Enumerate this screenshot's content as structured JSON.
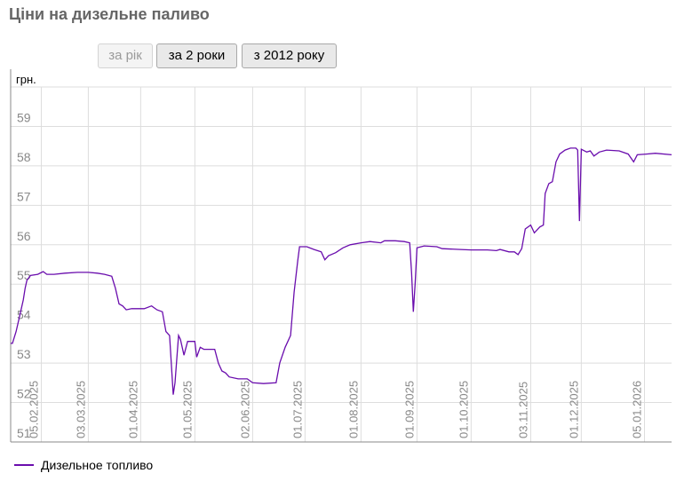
{
  "page": {
    "title": "Ціни на дизельне паливо"
  },
  "controls": {
    "buttons": [
      {
        "label": "за рік",
        "disabled": true
      },
      {
        "label": "за 2 роки",
        "disabled": false
      },
      {
        "label": "з 2012 року",
        "disabled": false
      }
    ]
  },
  "colors": {
    "series": "#6a0dad",
    "grid": "#dddddd",
    "axis": "#888888"
  },
  "chart_data": {
    "type": "line",
    "title": "Ціни на дизельне паливо",
    "ylabel": "грн.",
    "xlabel": "",
    "ylim": [
      51,
      60
    ],
    "yticks": [
      51,
      52,
      53,
      54,
      55,
      56,
      57,
      58,
      59
    ],
    "xticks": [
      "05.02.2025",
      "03.03.2025",
      "01.04.2025",
      "01.05.2025",
      "02.06.2025",
      "01.07.2025",
      "01.08.2025",
      "01.09.2025",
      "01.10.2025",
      "03.11.2025",
      "01.12.2025",
      "05.01.2026"
    ],
    "xlim": [
      "2025-01-19",
      "2026-01-20"
    ],
    "grid": true,
    "legend_position": "bottom-left",
    "series": [
      {
        "name": "Дизельное топливо",
        "color": "#6a0dad",
        "points": [
          [
            "2025-01-19",
            53.5
          ],
          [
            "2025-01-20",
            53.5
          ],
          [
            "2025-01-22",
            53.8
          ],
          [
            "2025-01-24",
            54.2
          ],
          [
            "2025-01-26",
            54.6
          ],
          [
            "2025-01-27",
            54.9
          ],
          [
            "2025-01-28",
            55.1
          ],
          [
            "2025-01-30",
            55.22
          ],
          [
            "2025-02-03",
            55.25
          ],
          [
            "2025-02-06",
            55.32
          ],
          [
            "2025-02-08",
            55.25
          ],
          [
            "2025-02-12",
            55.25
          ],
          [
            "2025-02-18",
            55.28
          ],
          [
            "2025-02-25",
            55.3
          ],
          [
            "2025-03-03",
            55.3
          ],
          [
            "2025-03-08",
            55.28
          ],
          [
            "2025-03-12",
            55.25
          ],
          [
            "2025-03-16",
            55.2
          ],
          [
            "2025-03-18",
            54.9
          ],
          [
            "2025-03-20",
            54.5
          ],
          [
            "2025-03-22",
            54.45
          ],
          [
            "2025-03-24",
            54.35
          ],
          [
            "2025-03-27",
            54.38
          ],
          [
            "2025-04-03",
            54.38
          ],
          [
            "2025-04-07",
            54.45
          ],
          [
            "2025-04-10",
            54.35
          ],
          [
            "2025-04-13",
            54.3
          ],
          [
            "2025-04-15",
            53.8
          ],
          [
            "2025-04-17",
            53.7
          ],
          [
            "2025-04-19",
            52.2
          ],
          [
            "2025-04-20",
            52.5
          ],
          [
            "2025-04-22",
            53.7
          ],
          [
            "2025-04-23",
            53.6
          ],
          [
            "2025-04-25",
            53.2
          ],
          [
            "2025-04-27",
            53.55
          ],
          [
            "2025-05-01",
            53.55
          ],
          [
            "2025-05-02",
            53.15
          ],
          [
            "2025-05-04",
            53.4
          ],
          [
            "2025-05-06",
            53.35
          ],
          [
            "2025-05-12",
            53.35
          ],
          [
            "2025-05-14",
            53.0
          ],
          [
            "2025-05-16",
            52.8
          ],
          [
            "2025-05-18",
            52.75
          ],
          [
            "2025-05-20",
            52.65
          ],
          [
            "2025-05-25",
            52.6
          ],
          [
            "2025-05-30",
            52.6
          ],
          [
            "2025-06-02",
            52.5
          ],
          [
            "2025-06-08",
            52.48
          ],
          [
            "2025-06-15",
            52.5
          ],
          [
            "2025-06-17",
            53.0
          ],
          [
            "2025-06-20",
            53.4
          ],
          [
            "2025-06-23",
            53.7
          ],
          [
            "2025-06-25",
            54.8
          ],
          [
            "2025-06-27",
            55.6
          ],
          [
            "2025-06-28",
            55.95
          ],
          [
            "2025-07-02",
            55.95
          ],
          [
            "2025-07-06",
            55.88
          ],
          [
            "2025-07-10",
            55.82
          ],
          [
            "2025-07-12",
            55.62
          ],
          [
            "2025-07-14",
            55.72
          ],
          [
            "2025-07-18",
            55.8
          ],
          [
            "2025-07-22",
            55.92
          ],
          [
            "2025-07-26",
            56.0
          ],
          [
            "2025-08-01",
            56.05
          ],
          [
            "2025-08-06",
            56.08
          ],
          [
            "2025-08-12",
            56.05
          ],
          [
            "2025-08-14",
            56.1
          ],
          [
            "2025-08-20",
            56.1
          ],
          [
            "2025-08-25",
            56.08
          ],
          [
            "2025-08-28",
            56.05
          ],
          [
            "2025-08-29",
            55.3
          ],
          [
            "2025-08-30",
            54.3
          ],
          [
            "2025-08-31",
            55.0
          ],
          [
            "2025-09-01",
            55.92
          ],
          [
            "2025-09-05",
            55.97
          ],
          [
            "2025-09-12",
            55.95
          ],
          [
            "2025-09-15",
            55.9
          ],
          [
            "2025-09-25",
            55.88
          ],
          [
            "2025-10-01",
            55.87
          ],
          [
            "2025-10-10",
            55.87
          ],
          [
            "2025-10-15",
            55.85
          ],
          [
            "2025-10-17",
            55.88
          ],
          [
            "2025-10-22",
            55.82
          ],
          [
            "2025-10-25",
            55.82
          ],
          [
            "2025-10-27",
            55.75
          ],
          [
            "2025-10-29",
            55.9
          ],
          [
            "2025-10-31",
            56.4
          ],
          [
            "2025-11-03",
            56.5
          ],
          [
            "2025-11-05",
            56.3
          ],
          [
            "2025-11-08",
            56.45
          ],
          [
            "2025-11-10",
            56.5
          ],
          [
            "2025-11-11",
            57.3
          ],
          [
            "2025-11-13",
            57.55
          ],
          [
            "2025-11-15",
            57.6
          ],
          [
            "2025-11-17",
            58.1
          ],
          [
            "2025-11-19",
            58.3
          ],
          [
            "2025-11-22",
            58.4
          ],
          [
            "2025-11-25",
            58.45
          ],
          [
            "2025-11-28",
            58.45
          ],
          [
            "2025-11-29",
            58.4
          ],
          [
            "2025-11-30",
            56.6
          ],
          [
            "2025-12-01",
            58.42
          ],
          [
            "2025-12-04",
            58.35
          ],
          [
            "2025-12-06",
            58.38
          ],
          [
            "2025-12-08",
            58.25
          ],
          [
            "2025-12-11",
            58.35
          ],
          [
            "2025-12-15",
            58.4
          ],
          [
            "2025-12-22",
            58.38
          ],
          [
            "2025-12-27",
            58.3
          ],
          [
            "2025-12-30",
            58.1
          ],
          [
            "2026-01-01",
            58.28
          ],
          [
            "2026-01-06",
            58.3
          ],
          [
            "2026-01-11",
            58.32
          ],
          [
            "2026-01-20",
            58.28
          ]
        ]
      }
    ]
  }
}
